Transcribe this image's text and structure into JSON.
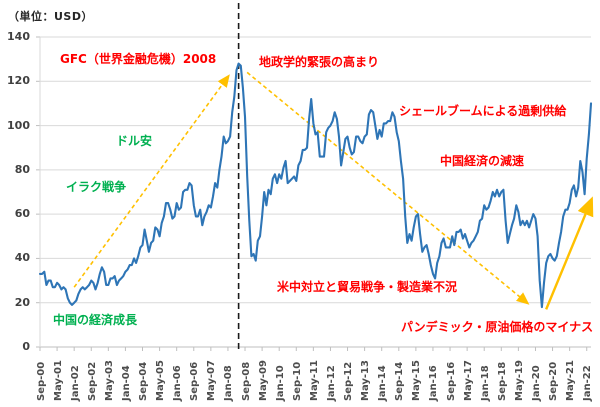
{
  "chart_data": {
    "type": "line",
    "unit_label": "（単位：USD）",
    "ylim": [
      0,
      140
    ],
    "y_ticks": [
      0,
      20,
      40,
      60,
      80,
      100,
      120,
      140
    ],
    "x_ticks": [
      "Sep-00",
      "May-01",
      "Jan-02",
      "Sep-02",
      "May-03",
      "Jan-04",
      "Sep-04",
      "May-05",
      "Jan-06",
      "Sep-06",
      "May-07",
      "Jan-08",
      "Sep-08",
      "May-09",
      "Jan-10",
      "Sep-10",
      "May-11",
      "Jan-12",
      "Sep-12",
      "May-13",
      "Jan-14",
      "Sep-14",
      "May-15",
      "Jan-16",
      "Sep-16",
      "May-17",
      "Jan-18",
      "Sep-18",
      "May-19",
      "Jan-20",
      "Sep-20",
      "May-21",
      "Jan-22"
    ],
    "tick_every": 8,
    "grid": "horizontal",
    "legend": "none",
    "series": [
      {
        "name": "crude-oil-price-usd",
        "start": "Sep-00",
        "frequency": "monthly",
        "values": [
          33,
          33,
          34,
          28,
          30,
          30,
          27,
          27,
          29,
          28,
          26,
          27,
          26,
          22,
          20,
          19,
          20,
          21,
          24,
          26,
          27,
          26,
          27,
          28,
          30,
          29,
          26,
          29,
          33,
          36,
          34,
          28,
          28,
          31,
          31,
          32,
          28,
          30,
          31,
          32,
          34,
          35,
          37,
          37,
          40,
          38,
          41,
          45,
          46,
          53,
          48,
          43,
          47,
          48,
          54,
          53,
          50,
          56,
          59,
          65,
          65,
          62,
          58,
          59,
          65,
          62,
          63,
          70,
          71,
          71,
          74,
          73,
          64,
          59,
          59,
          62,
          55,
          59,
          61,
          64,
          63,
          68,
          74,
          72,
          80,
          86,
          95,
          92,
          93,
          95,
          106,
          113,
          125,
          128,
          127,
          117,
          104,
          77,
          57,
          41,
          42,
          39,
          48,
          50,
          59,
          70,
          64,
          71,
          69,
          76,
          78,
          74,
          78,
          76,
          81,
          84,
          74,
          75,
          76,
          77,
          75,
          82,
          84,
          89,
          89,
          90,
          103,
          112,
          101,
          96,
          97,
          86,
          86,
          86,
          97,
          99,
          100,
          102,
          106,
          103,
          95,
          82,
          88,
          94,
          95,
          90,
          87,
          88,
          95,
          95,
          93,
          92,
          95,
          96,
          105,
          107,
          106,
          100,
          94,
          98,
          95,
          101,
          101,
          102,
          102,
          106,
          104,
          97,
          93,
          84,
          76,
          59,
          47,
          51,
          48,
          54,
          59,
          60,
          51,
          43,
          45,
          46,
          42,
          37,
          33,
          31,
          38,
          41,
          47,
          49,
          45,
          45,
          45,
          50,
          46,
          52,
          52,
          53,
          49,
          51,
          48,
          45,
          47,
          48,
          50,
          52,
          57,
          58,
          64,
          62,
          63,
          66,
          70,
          68,
          71,
          68,
          70,
          71,
          57,
          47,
          51,
          55,
          58,
          64,
          61,
          55,
          57,
          55,
          57,
          54,
          57,
          60,
          58,
          50,
          30,
          18,
          29,
          38,
          41,
          42,
          40,
          39,
          41,
          47,
          52,
          59,
          62,
          62,
          65,
          71,
          73,
          68,
          72,
          84,
          79,
          69,
          85,
          96,
          110
        ]
      }
    ],
    "event_marker": {
      "name": "gfc-peak-vline",
      "index": 93,
      "style": "dashed"
    },
    "trend_lines": [
      {
        "name": "uptrend-2002-2008",
        "style": "dashed",
        "from_index": 16,
        "from_value": 27,
        "to_index": 88,
        "to_value": 122
      },
      {
        "name": "downtrend-2008-2020",
        "style": "dashed",
        "from_index": 97,
        "from_value": 124,
        "to_index": 228,
        "to_value": 20
      },
      {
        "name": "rebound-2020-2022",
        "style": "solid",
        "from_index": 237,
        "from_value": 17,
        "to_index": 258,
        "to_value": 66
      }
    ],
    "annotations": {
      "gfc": "GFC（世界金融危機）2008",
      "geopolitical": "地政学的緊張の高まり",
      "shale_boom": "シェールブームによる過剰供給",
      "china_slowdown": "中国経済の減速",
      "weak_dollar": "ドル安",
      "iraq_war": "イラク戦争",
      "china_growth": "中国の経済成長",
      "us_china_trade": "米中対立と貿易戦争・製造業不況",
      "pandemic": "パンデミック・原油価格のマイナス"
    },
    "colors": {
      "price_line": "#2E75B6",
      "trend_line": "#FFC000",
      "event_line": "#1A1A1A",
      "negative_note": "#FF0000",
      "positive_note": "#00B050",
      "grid_line": "#D9D9D9",
      "axis_line": "#BFBFBF",
      "axis_text": "#4D4D4D",
      "unit_text": "#262626"
    }
  }
}
